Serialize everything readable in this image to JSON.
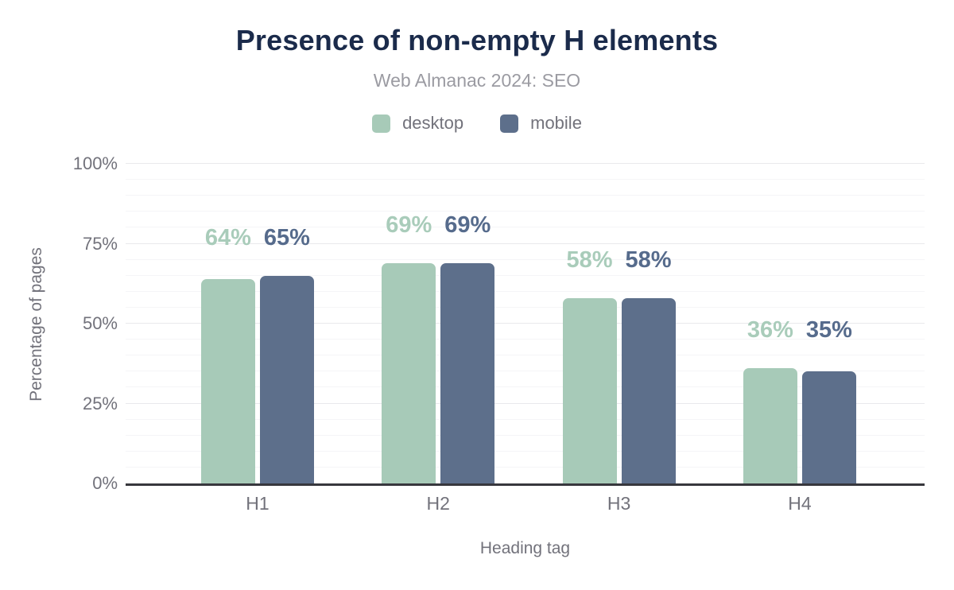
{
  "title": "Presence of non-empty H elements",
  "subtitle": "Web Almanac 2024: SEO",
  "legend": {
    "items": [
      {
        "label": "desktop",
        "color": "#a7cab8"
      },
      {
        "label": "mobile",
        "color": "#5d6f8b"
      }
    ]
  },
  "colors": {
    "title": "#1b2b4b",
    "axis_text": "#72727b",
    "subtitle_text": "#9b9ba2",
    "axis_line": "#37373d",
    "gridline_minor": "#f5f5f7",
    "gridline_major": "#e9e9ec"
  },
  "chart_data": {
    "type": "bar",
    "title": "Presence of non-empty H elements",
    "subtitle": "Web Almanac 2024: SEO",
    "categories": [
      "H1",
      "H2",
      "H3",
      "H4"
    ],
    "series": [
      {
        "name": "desktop",
        "color": "#a7cab8",
        "label_color": "#a9ccba",
        "values": [
          64,
          69,
          58,
          36
        ]
      },
      {
        "name": "mobile",
        "color": "#5d6f8b",
        "label_color": "#566b8c",
        "values": [
          65,
          69,
          58,
          35
        ]
      }
    ],
    "data_labels": [
      "64%",
      "65%",
      "69%",
      "69%",
      "58%",
      "58%",
      "36%",
      "35%"
    ],
    "xlabel": "Heading tag",
    "ylabel": "Percentage of pages",
    "yticks": [
      "0%",
      "25%",
      "50%",
      "75%",
      "100%"
    ],
    "ylim": [
      0,
      100
    ],
    "grid": {
      "minor_step": 5,
      "major_step": 25,
      "direction": "horizontal"
    },
    "legend_position": "top",
    "bar_corner_radius": 7
  }
}
